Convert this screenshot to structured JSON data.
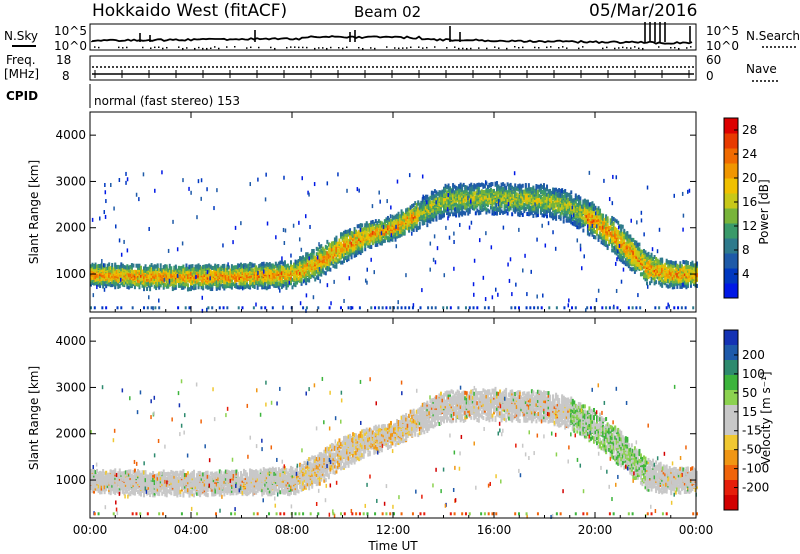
{
  "header": {
    "station": "Hokkaido West (fitACF)",
    "beam": "Beam 02",
    "date": "05/Mar/2016"
  },
  "top_panels": {
    "nsky_label": "N.Sky",
    "nsearch_label": "N.Search",
    "nsky_ticks": [
      "10^5",
      "10^0"
    ],
    "nsearch_ticks": [
      "10^5",
      "10^0"
    ],
    "freq_label_line1": "Freq.",
    "freq_label_line2": "[MHz]",
    "freq_ticks": [
      "18",
      "8"
    ],
    "nave_label": "Nave",
    "nave_ticks": [
      "60",
      "0"
    ],
    "cpid_label": "CPID",
    "cpid_text": "normal (fast stereo) 153"
  },
  "chart_data": [
    {
      "type": "heatmap",
      "panel": "power",
      "ylabel": "Slant Range [km]",
      "xlabel": "",
      "ylim": [
        180,
        4500
      ],
      "y_ticks": [
        1000,
        2000,
        3000,
        4000
      ],
      "x_ticks": [
        "00:00",
        "04:00",
        "08:00",
        "12:00",
        "16:00",
        "20:00",
        "00:00"
      ],
      "colorbar": {
        "label": "Power [dB]",
        "ticks": [
          4,
          8,
          12,
          16,
          20,
          24,
          28
        ],
        "range": [
          0,
          30
        ],
        "colors": [
          "#0018e6",
          "#0038c0",
          "#1e5aa8",
          "#2e7a8c",
          "#3a9a6a",
          "#78b43a",
          "#c8c818",
          "#f0c000",
          "#f09600",
          "#f06a00",
          "#e83a00",
          "#dd0000"
        ]
      },
      "echo_band": [
        {
          "t": 0,
          "range": 1000,
          "width": 180
        },
        {
          "t": 2,
          "range": 950,
          "width": 200
        },
        {
          "t": 4,
          "range": 940,
          "width": 200
        },
        {
          "t": 6,
          "range": 960,
          "width": 200
        },
        {
          "t": 8,
          "range": 1000,
          "width": 220
        },
        {
          "t": 9,
          "range": 1250,
          "width": 260
        },
        {
          "t": 10,
          "range": 1600,
          "width": 260
        },
        {
          "t": 11,
          "range": 1850,
          "width": 220
        },
        {
          "t": 12,
          "range": 2000,
          "width": 200
        },
        {
          "t": 13,
          "range": 2300,
          "width": 240
        },
        {
          "t": 14,
          "range": 2600,
          "width": 260
        },
        {
          "t": 16,
          "range": 2650,
          "width": 260
        },
        {
          "t": 18,
          "range": 2600,
          "width": 260
        },
        {
          "t": 19,
          "range": 2450,
          "width": 260
        },
        {
          "t": 20,
          "range": 2150,
          "width": 280
        },
        {
          "t": 21,
          "range": 1700,
          "width": 300
        },
        {
          "t": 22,
          "range": 1150,
          "width": 260
        },
        {
          "t": 23,
          "range": 1000,
          "width": 220
        },
        {
          "t": 24,
          "range": 1000,
          "width": 200
        }
      ]
    },
    {
      "type": "heatmap",
      "panel": "velocity",
      "ylabel": "Slant Range [km]",
      "xlabel": "Time UT",
      "ylim": [
        180,
        4500
      ],
      "y_ticks": [
        1000,
        2000,
        3000,
        4000
      ],
      "x_ticks": [
        "00:00",
        "04:00",
        "08:00",
        "12:00",
        "16:00",
        "20:00",
        "00:00"
      ],
      "colorbar": {
        "label": "Velocity [m s⁻¹]",
        "ticks": [
          200,
          100,
          50,
          15,
          -15,
          -50,
          -100,
          -200
        ],
        "colors": [
          "#1432b4",
          "#1e5aaa",
          "#2e8a6e",
          "#3cb43c",
          "#8cd250",
          "#c8c8c8",
          "#c8c8c8",
          "#f0c832",
          "#f09614",
          "#f0640a",
          "#e61e0a",
          "#d20000"
        ]
      }
    }
  ]
}
